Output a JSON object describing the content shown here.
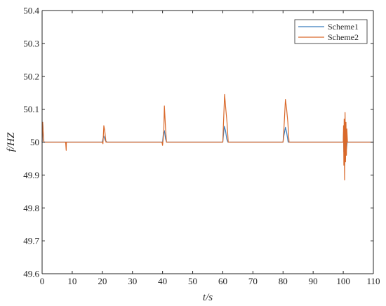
{
  "chart_data": {
    "type": "line",
    "title": "",
    "xlabel": "t/s",
    "ylabel": "f/HZ",
    "xlim": [
      0,
      110
    ],
    "ylim": [
      49.6,
      50.4
    ],
    "xticks": [
      0,
      10,
      20,
      30,
      40,
      50,
      60,
      70,
      80,
      90,
      100,
      110
    ],
    "yticks": [
      49.6,
      49.7,
      49.8,
      49.9,
      50,
      50.1,
      50.2,
      50.3,
      50.4
    ],
    "xtick_labels": [
      "0",
      "10",
      "20",
      "30",
      "40",
      "50",
      "60",
      "70",
      "80",
      "90",
      "100",
      "110"
    ],
    "ytick_labels": [
      "49.6",
      "49.7",
      "49.8",
      "49.9",
      "50",
      "50.1",
      "50.2",
      "50.3",
      "50.4"
    ],
    "grid": false,
    "legend_position": "top-right",
    "colors": {
      "series1": "#3a7dbd",
      "series2": "#d9692b",
      "axis": "#262626"
    },
    "series": [
      {
        "name": "Scheme1",
        "x": [
          0,
          0.2,
          0.4,
          0.6,
          1,
          8,
          20,
          20.2,
          20.5,
          21,
          21.5,
          40,
          40.3,
          40.6,
          41,
          41.3,
          60,
          60.2,
          60.5,
          60.9,
          61.3,
          61.7,
          80,
          80.3,
          80.8,
          81.2,
          81.7,
          100,
          100.1,
          100.2,
          100.3,
          100.45,
          100.6,
          100.75,
          100.9,
          101.1,
          101.3,
          110
        ],
        "y": [
          50,
          50.06,
          50.02,
          50,
          50,
          50,
          50,
          50.01,
          50.018,
          50.005,
          50,
          50,
          50.03,
          50.035,
          50.01,
          50,
          50,
          50.02,
          50.048,
          50.035,
          50.01,
          50,
          50,
          50.02,
          50.045,
          50.03,
          50,
          50,
          50.03,
          49.97,
          50.04,
          49.93,
          50.05,
          49.95,
          50.04,
          49.98,
          50,
          50
        ]
      },
      {
        "name": "Scheme2",
        "x": [
          0,
          0.2,
          0.4,
          0.6,
          1,
          7.8,
          8,
          8.05,
          8.2,
          20,
          20.2,
          20.5,
          20.8,
          21.2,
          39.8,
          40,
          40.4,
          40.6,
          41,
          41.3,
          60,
          60.2,
          60.6,
          61,
          61.4,
          61.8,
          80,
          80.3,
          80.8,
          81.2,
          81.6,
          82,
          100,
          100.1,
          100.2,
          100.3,
          100.45,
          100.6,
          100.75,
          100.9,
          101.05,
          101.2,
          101.4,
          110
        ],
        "y": [
          50,
          50.06,
          50.02,
          50,
          50,
          50,
          49.975,
          50,
          50,
          50,
          49.995,
          50.05,
          50.035,
          50,
          50,
          49.99,
          50.03,
          50.11,
          50.04,
          50,
          50,
          50.05,
          50.145,
          50.1,
          50.06,
          50,
          50,
          50.04,
          50.13,
          50.1,
          50.06,
          50,
          50,
          50.05,
          49.93,
          50.07,
          49.885,
          50.09,
          49.94,
          50.06,
          49.96,
          50.04,
          50,
          50
        ]
      }
    ]
  }
}
